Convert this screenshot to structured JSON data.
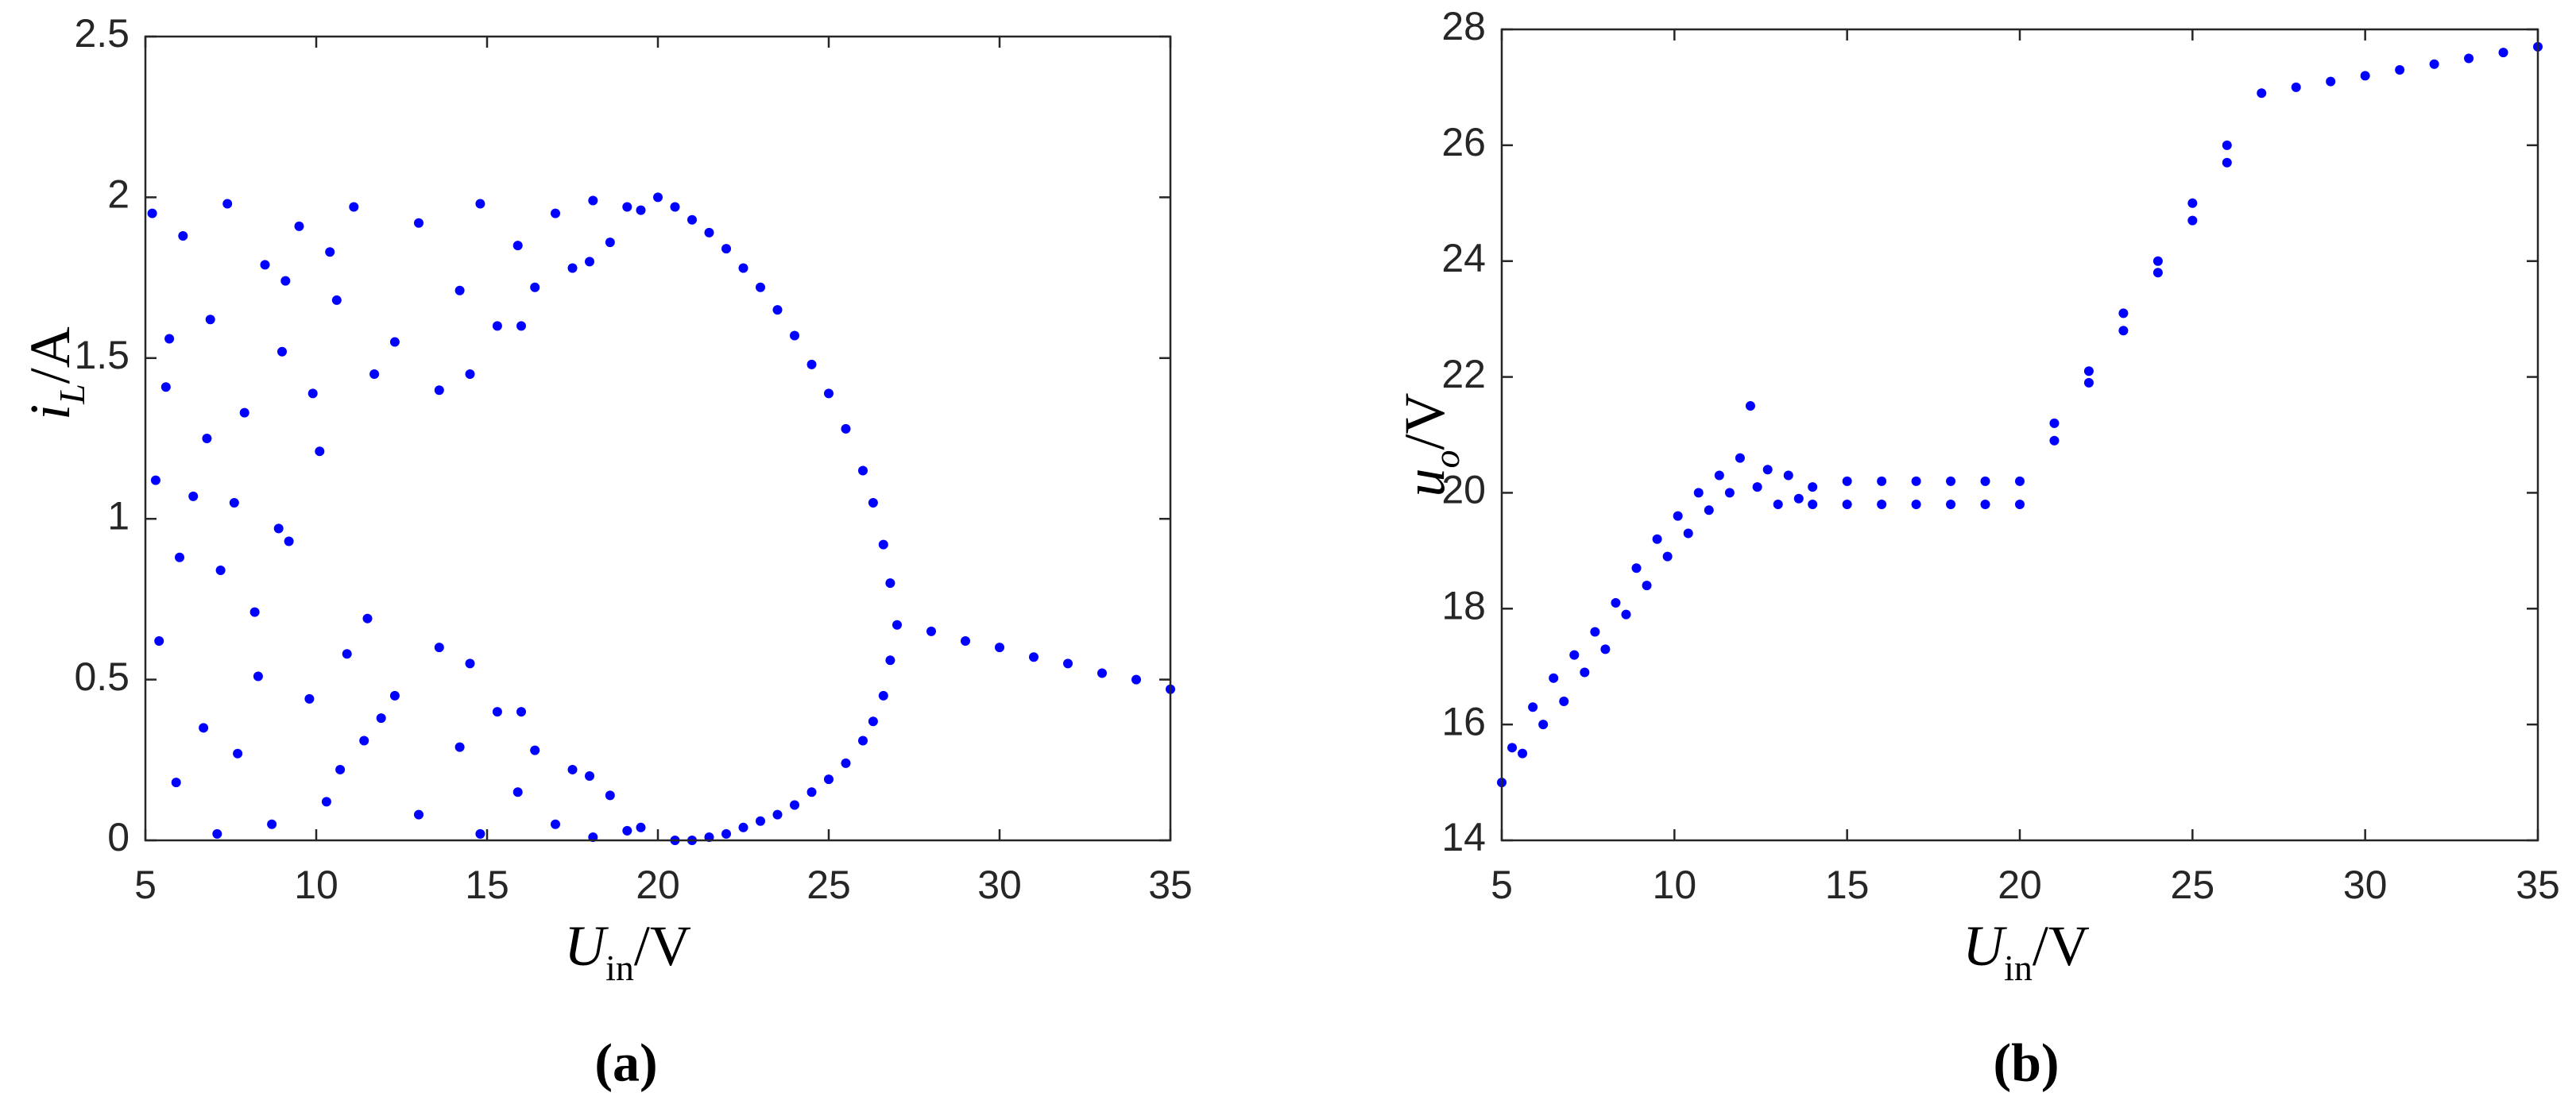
{
  "chart_data": [
    {
      "type": "scatter",
      "caption": "(a)",
      "xlabel": [
        "U",
        "in",
        "/V"
      ],
      "ylabel": [
        "i",
        "L",
        "/A"
      ],
      "color": "#0000ff",
      "xlim": [
        5,
        35
      ],
      "ylim": [
        0,
        2.5
      ],
      "xticks": [
        5,
        10,
        15,
        20,
        25,
        30,
        35
      ],
      "yticks": [
        0,
        0.5,
        1,
        1.5,
        2,
        2.5
      ],
      "x": [
        5.2,
        5.4,
        5.6,
        5.9,
        6.1,
        6.4,
        6.7,
        6.9,
        7.2,
        7.4,
        7.7,
        7.9,
        8.2,
        8.5,
        8.7,
        9.0,
        9.2,
        9.5,
        9.8,
        10.1,
        10.3,
        10.6,
        10.9,
        11.1,
        11.4,
        11.7,
        5.3,
        6.0,
        6.8,
        7.6,
        8.3,
        9.1,
        9.9,
        10.7,
        11.5,
        5.7,
        7.1,
        8.9,
        10.4,
        11.9,
        12.3,
        13.0,
        13.6,
        14.2,
        14.8,
        15.3,
        15.9,
        16.4,
        17.0,
        17.5,
        18.1,
        18.6,
        19.1,
        19.5,
        14.5,
        16.0,
        18.0,
        12.3,
        13.0,
        13.6,
        14.2,
        14.8,
        15.3,
        15.9,
        16.4,
        17.0,
        17.5,
        18.1,
        18.6,
        19.1,
        19.5,
        14.5,
        16.0,
        18.0,
        20.0,
        20.5,
        21.0,
        21.5,
        22.0,
        22.5,
        23.0,
        23.5,
        24.0,
        24.5,
        25.0,
        25.5,
        26.0,
        26.3,
        26.6,
        26.8,
        20.5,
        21.0,
        21.5,
        22.0,
        22.5,
        23.0,
        23.5,
        24.0,
        24.5,
        25.0,
        25.5,
        26.0,
        26.3,
        26.6,
        26.8,
        27,
        28,
        29,
        30,
        31,
        32,
        33,
        34,
        35
      ],
      "y": [
        1.95,
        0.62,
        1.41,
        0.18,
        1.88,
        1.07,
        0.35,
        1.62,
        0.84,
        1.98,
        0.27,
        1.33,
        0.71,
        1.79,
        0.05,
        1.52,
        0.93,
        1.91,
        0.44,
        1.21,
        0.12,
        1.68,
        0.58,
        1.97,
        0.31,
        1.45,
        1.12,
        0.88,
        1.25,
        1.05,
        0.51,
        1.74,
        1.39,
        0.22,
        0.69,
        1.56,
        0.02,
        0.97,
        1.83,
        0.38,
        1.55,
        1.92,
        1.4,
        1.71,
        1.98,
        1.6,
        1.85,
        1.72,
        1.95,
        1.78,
        1.99,
        1.86,
        1.97,
        1.96,
        1.45,
        1.6,
        1.8,
        0.45,
        0.08,
        0.6,
        0.29,
        0.02,
        0.4,
        0.15,
        0.28,
        0.05,
        0.22,
        0.01,
        0.14,
        0.03,
        0.04,
        0.55,
        0.4,
        0.2,
        2.0,
        1.97,
        1.93,
        1.89,
        1.84,
        1.78,
        1.72,
        1.65,
        1.57,
        1.48,
        1.39,
        1.28,
        1.15,
        1.05,
        0.92,
        0.8,
        0.0,
        0.0,
        0.01,
        0.02,
        0.04,
        0.06,
        0.08,
        0.11,
        0.15,
        0.19,
        0.24,
        0.31,
        0.37,
        0.45,
        0.56,
        0.67,
        0.65,
        0.62,
        0.6,
        0.57,
        0.55,
        0.52,
        0.5,
        0.47
      ]
    },
    {
      "type": "scatter",
      "caption": "(b)",
      "xlabel": [
        "U",
        "in",
        "/V"
      ],
      "ylabel": [
        "u",
        "o",
        "/V"
      ],
      "color": "#0000ff",
      "xlim": [
        5,
        35
      ],
      "ylim": [
        14,
        28
      ],
      "xticks": [
        5,
        10,
        15,
        20,
        25,
        30,
        35
      ],
      "yticks": [
        14,
        16,
        18,
        20,
        22,
        24,
        26,
        28
      ],
      "x": [
        5.0,
        5.3,
        5.6,
        5.9,
        6.2,
        6.5,
        6.8,
        7.1,
        7.4,
        7.7,
        8.0,
        8.3,
        8.6,
        8.9,
        9.2,
        9.5,
        9.8,
        10.1,
        10.4,
        10.7,
        11.0,
        11.3,
        11.6,
        11.9,
        12.2,
        12.4,
        12.7,
        13.0,
        13.3,
        13.6,
        14,
        15,
        16,
        17,
        18,
        19,
        20,
        14,
        15,
        16,
        17,
        18,
        19,
        20,
        21,
        22,
        23,
        24,
        25,
        26,
        21,
        22,
        23,
        24,
        25,
        26,
        27,
        28,
        29,
        30,
        31,
        32,
        33,
        34,
        35
      ],
      "y": [
        15.0,
        15.6,
        15.5,
        16.3,
        16.0,
        16.8,
        16.4,
        17.2,
        16.9,
        17.6,
        17.3,
        18.1,
        17.9,
        18.7,
        18.4,
        19.2,
        18.9,
        19.6,
        19.3,
        20.0,
        19.7,
        20.3,
        20.0,
        20.6,
        21.5,
        20.1,
        20.4,
        19.8,
        20.3,
        19.9,
        20.1,
        20.2,
        20.2,
        20.2,
        20.2,
        20.2,
        20.2,
        19.8,
        19.8,
        19.8,
        19.8,
        19.8,
        19.8,
        19.8,
        21.2,
        22.1,
        23.1,
        24.0,
        25.0,
        26.0,
        20.9,
        21.9,
        22.8,
        23.8,
        24.7,
        25.7,
        26.9,
        27.0,
        27.1,
        27.2,
        27.3,
        27.4,
        27.5,
        27.6,
        27.7
      ]
    }
  ]
}
